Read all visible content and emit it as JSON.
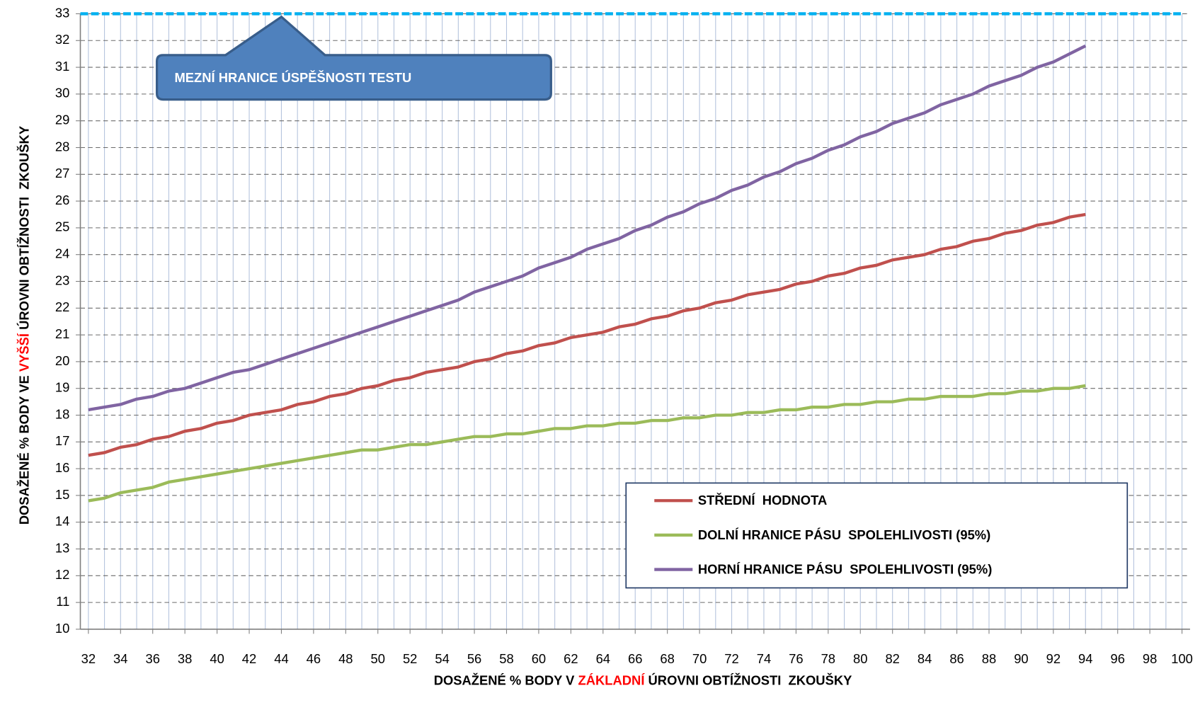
{
  "chart_data": {
    "type": "line",
    "x_label": [
      "DOSAŽENÉ % BODY V ",
      "ZÁKLADNÍ",
      " ÚROVNI OBTÍŽNOSTI  ZKOUŠKY"
    ],
    "y_label": [
      "DOSAŽENÉ % BODY VE ",
      "VYŠŠÍ",
      " ÚROVNI OBTÍŽNOSTI  ZKOUŠKY"
    ],
    "label_highlight_color": "#ff0000",
    "annotation": "MEZNÍ HRANICE ÚSPĚŠNOSTI TESTU",
    "threshold": {
      "value": 33,
      "color": "#00b0f0",
      "at_x": 44
    },
    "x": [
      32,
      33,
      34,
      35,
      36,
      37,
      38,
      39,
      40,
      41,
      42,
      43,
      44,
      45,
      46,
      47,
      48,
      49,
      50,
      51,
      52,
      53,
      54,
      55,
      56,
      57,
      58,
      59,
      60,
      61,
      62,
      63,
      64,
      65,
      66,
      67,
      68,
      69,
      70,
      71,
      72,
      73,
      74,
      75,
      76,
      77,
      78,
      79,
      80,
      81,
      82,
      83,
      84,
      85,
      86,
      87,
      88,
      89,
      90,
      91,
      92,
      93,
      94
    ],
    "series": [
      {
        "name": "STŘEDNÍ  HODNOTA",
        "color": "#c0504d",
        "values": [
          16.5,
          16.6,
          16.8,
          16.9,
          17.1,
          17.2,
          17.4,
          17.5,
          17.7,
          17.8,
          18.0,
          18.1,
          18.2,
          18.4,
          18.5,
          18.7,
          18.8,
          19.0,
          19.1,
          19.3,
          19.4,
          19.6,
          19.7,
          19.8,
          20.0,
          20.1,
          20.3,
          20.4,
          20.6,
          20.7,
          20.9,
          21.0,
          21.1,
          21.3,
          21.4,
          21.6,
          21.7,
          21.9,
          22.0,
          22.2,
          22.3,
          22.5,
          22.6,
          22.7,
          22.9,
          23.0,
          23.2,
          23.3,
          23.5,
          23.6,
          23.8,
          23.9,
          24.0,
          24.2,
          24.3,
          24.5,
          24.6,
          24.8,
          24.9,
          25.1,
          25.2,
          25.4,
          25.5
        ]
      },
      {
        "name": "DOLNÍ HRANICE PÁSU  SPOLEHLIVOSTI (95%)",
        "color": "#9bbb59",
        "values": [
          14.8,
          14.9,
          15.1,
          15.2,
          15.3,
          15.5,
          15.6,
          15.7,
          15.8,
          15.9,
          16.0,
          16.1,
          16.2,
          16.3,
          16.4,
          16.5,
          16.6,
          16.7,
          16.7,
          16.8,
          16.9,
          16.9,
          17.0,
          17.1,
          17.2,
          17.2,
          17.3,
          17.3,
          17.4,
          17.5,
          17.5,
          17.6,
          17.6,
          17.7,
          17.7,
          17.8,
          17.8,
          17.9,
          17.9,
          18.0,
          18.0,
          18.1,
          18.1,
          18.2,
          18.2,
          18.3,
          18.3,
          18.4,
          18.4,
          18.5,
          18.5,
          18.6,
          18.6,
          18.7,
          18.7,
          18.7,
          18.8,
          18.8,
          18.9,
          18.9,
          19.0,
          19.0,
          19.1
        ]
      },
      {
        "name": "HORNÍ HRANICE PÁSU  SPOLEHLIVOSTI (95%)",
        "color": "#8064a2",
        "values": [
          18.2,
          18.3,
          18.4,
          18.6,
          18.7,
          18.9,
          19.0,
          19.2,
          19.4,
          19.6,
          19.7,
          19.9,
          20.1,
          20.3,
          20.5,
          20.7,
          20.9,
          21.1,
          21.3,
          21.5,
          21.7,
          21.9,
          22.1,
          22.3,
          22.6,
          22.8,
          23.0,
          23.2,
          23.5,
          23.7,
          23.9,
          24.2,
          24.4,
          24.6,
          24.9,
          25.1,
          25.4,
          25.6,
          25.9,
          26.1,
          26.4,
          26.6,
          26.9,
          27.1,
          27.4,
          27.6,
          27.9,
          28.1,
          28.4,
          28.6,
          28.9,
          29.1,
          29.3,
          29.6,
          29.8,
          30.0,
          30.3,
          30.5,
          30.7,
          31.0,
          31.2,
          31.5,
          31.8
        ]
      }
    ],
    "xlim": [
      31.5,
      100.5
    ],
    "xticks": [
      32,
      34,
      36,
      38,
      40,
      42,
      44,
      46,
      48,
      50,
      52,
      54,
      56,
      58,
      60,
      62,
      64,
      66,
      68,
      70,
      72,
      74,
      76,
      78,
      80,
      82,
      84,
      86,
      88,
      90,
      92,
      94,
      96,
      98,
      100
    ],
    "xminorticks": [
      33,
      35,
      37,
      39,
      41,
      43,
      45,
      47,
      49,
      51,
      53,
      55,
      57,
      59,
      61,
      63,
      65,
      67,
      69,
      71,
      73,
      75,
      77,
      79,
      81,
      83,
      85,
      87,
      89,
      91,
      93,
      95,
      97,
      99
    ],
    "ylim": [
      10,
      33
    ],
    "yticks": [
      10,
      11,
      12,
      13,
      14,
      15,
      16,
      17,
      18,
      19,
      20,
      21,
      22,
      23,
      24,
      25,
      26,
      27,
      28,
      29,
      30,
      31,
      32,
      33
    ],
    "grid": true,
    "legend": "lower right"
  }
}
